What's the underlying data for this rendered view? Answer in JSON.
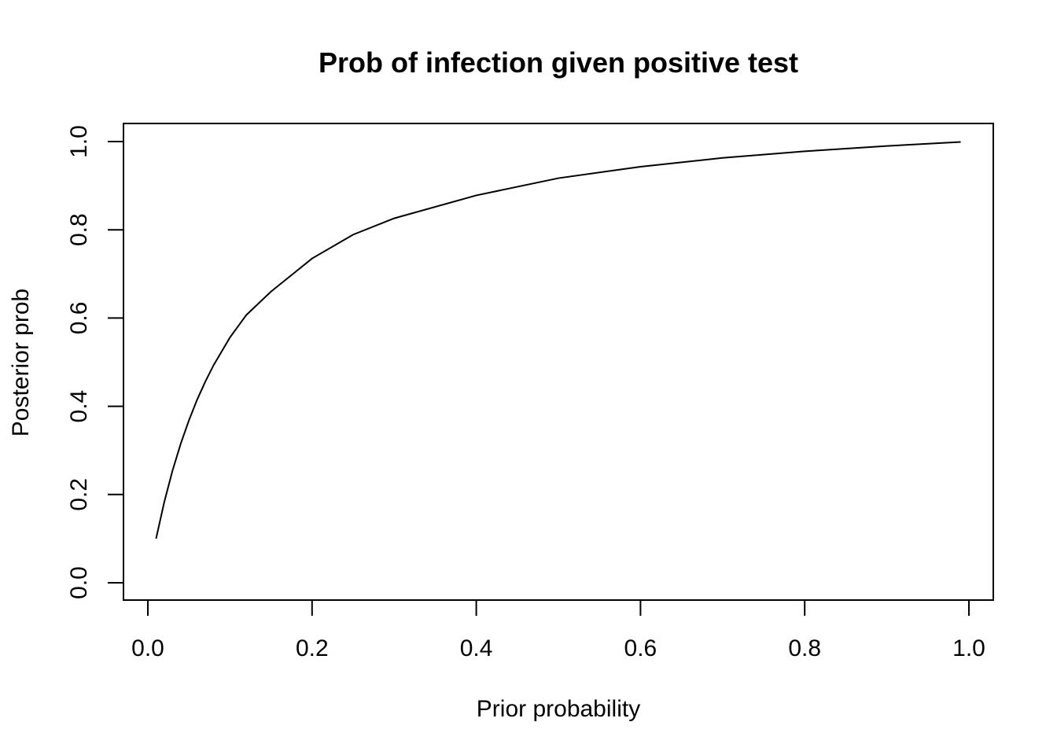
{
  "chart_data": {
    "type": "line",
    "title": "Prob of infection given positive test",
    "xlabel": "Prior probability",
    "ylabel": "Posterior prob",
    "xlim": [
      0.0,
      1.0
    ],
    "ylim": [
      0.0,
      1.0
    ],
    "xticks": [
      "0.0",
      "0.2",
      "0.4",
      "0.6",
      "0.8",
      "1.0"
    ],
    "yticks": [
      "0.0",
      "0.2",
      "0.4",
      "0.6",
      "0.8",
      "1.0"
    ],
    "grid": false,
    "legend": "none",
    "line_color": "#000000",
    "series": [
      {
        "x": [
          0.01,
          0.02,
          0.03,
          0.04,
          0.05,
          0.06,
          0.07,
          0.08,
          0.1,
          0.12,
          0.15,
          0.2,
          0.25,
          0.3,
          0.4,
          0.5,
          0.6,
          0.7,
          0.8,
          0.9,
          0.99
        ],
        "y": [
          0.1,
          0.183,
          0.254,
          0.315,
          0.368,
          0.415,
          0.456,
          0.493,
          0.556,
          0.607,
          0.66,
          0.735,
          0.789,
          0.826,
          0.878,
          0.917,
          0.943,
          0.963,
          0.978,
          0.99,
          0.999
        ]
      }
    ]
  }
}
